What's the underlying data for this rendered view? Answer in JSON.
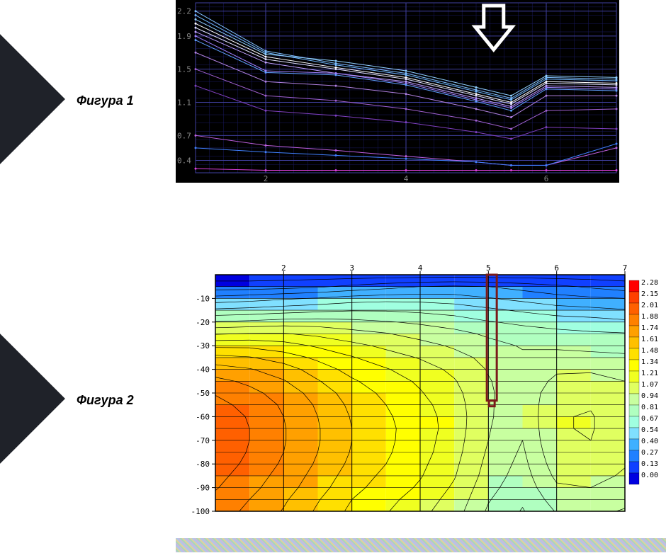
{
  "labels": {
    "fig1": "Фигура 1",
    "fig2": "Фигура 2"
  },
  "figure1": {
    "type": "line",
    "background_color": "#000000",
    "grid_color": "#1a1a60",
    "axis_color": "#4040a0",
    "text_color": "#888888",
    "xlim": [
      1,
      7
    ],
    "ylim": [
      0.25,
      2.3
    ],
    "y_ticks": [
      0.4,
      0.7,
      1.1,
      1.5,
      1.9,
      2.2
    ],
    "x_ticks": [
      2,
      4,
      6
    ],
    "grid_xstep": 0.2,
    "grid_ystep": 0.1,
    "arrow": {
      "x": 5.25,
      "color": "#ffffff",
      "stroke_width": 5
    },
    "series": [
      {
        "color": "#80c0ff",
        "y": [
          2.2,
          1.72,
          1.57,
          1.45,
          1.25,
          1.15,
          1.4,
          1.38
        ]
      },
      {
        "color": "#70b8ff",
        "y": [
          2.15,
          1.7,
          1.55,
          1.43,
          1.23,
          1.13,
          1.38,
          1.36
        ]
      },
      {
        "color": "#90d0ff",
        "y": [
          2.1,
          1.68,
          1.6,
          1.48,
          1.28,
          1.18,
          1.42,
          1.4
        ]
      },
      {
        "color": "#ffffff",
        "y": [
          2.05,
          1.65,
          1.52,
          1.4,
          1.2,
          1.1,
          1.35,
          1.33
        ]
      },
      {
        "color": "#e0e0ff",
        "y": [
          2.0,
          1.62,
          1.5,
          1.38,
          1.18,
          1.08,
          1.33,
          1.31
        ]
      },
      {
        "color": "#c0a0ff",
        "y": [
          1.95,
          1.58,
          1.45,
          1.35,
          1.15,
          1.05,
          1.3,
          1.28
        ]
      },
      {
        "color": "#a080ff",
        "y": [
          1.9,
          1.48,
          1.45,
          1.33,
          1.13,
          1.03,
          1.28,
          1.26
        ]
      },
      {
        "color": "#60a0ff",
        "y": [
          1.85,
          1.46,
          1.43,
          1.31,
          1.11,
          1.0,
          1.26,
          1.24
        ]
      },
      {
        "color": "#b080e0",
        "y": [
          1.7,
          1.35,
          1.3,
          1.2,
          1.02,
          0.92,
          1.18,
          1.18
        ]
      },
      {
        "color": "#a060d0",
        "y": [
          1.5,
          1.18,
          1.12,
          1.02,
          0.88,
          0.78,
          1.0,
          1.02
        ]
      },
      {
        "color": "#8040c0",
        "y": [
          1.3,
          1.0,
          0.94,
          0.86,
          0.74,
          0.66,
          0.8,
          0.78
        ]
      },
      {
        "color": "#c060e0",
        "y": [
          0.7,
          0.58,
          0.52,
          0.45,
          0.38,
          0.34,
          0.34,
          0.55
        ]
      },
      {
        "color": "#4080ff",
        "y": [
          0.55,
          0.5,
          0.46,
          0.42,
          0.38,
          0.34,
          0.34,
          0.6
        ]
      },
      {
        "color": "#e040e0",
        "y": [
          0.3,
          0.28,
          0.28,
          0.28,
          0.28,
          0.28,
          0.28,
          0.28
        ]
      }
    ]
  },
  "figure2": {
    "type": "heatmap-contour",
    "background_color": "#ffffff",
    "grid_color": "#000000",
    "xlim": [
      1,
      7
    ],
    "ylim": [
      -100,
      0
    ],
    "x_ticks": [
      2,
      3,
      4,
      5,
      6,
      7
    ],
    "y_ticks": [
      -10,
      -20,
      -30,
      -40,
      -50,
      -60,
      -70,
      -80,
      -90,
      -100
    ],
    "marker": {
      "x": 5.05,
      "y_top": 0,
      "y_bot": -55,
      "color": "#7a1a1a",
      "stroke_width": 3
    },
    "legend": [
      {
        "val": "2.28",
        "color": "#ff0000"
      },
      {
        "val": "2.15",
        "color": "#ff4000"
      },
      {
        "val": "2.01",
        "color": "#ff6000"
      },
      {
        "val": "1.88",
        "color": "#ff8000"
      },
      {
        "val": "1.74",
        "color": "#ffa000"
      },
      {
        "val": "1.61",
        "color": "#ffc000"
      },
      {
        "val": "1.48",
        "color": "#ffe000"
      },
      {
        "val": "1.34",
        "color": "#ffff00"
      },
      {
        "val": "1.21",
        "color": "#f0ff20"
      },
      {
        "val": "1.07",
        "color": "#e0ff60"
      },
      {
        "val": "0.94",
        "color": "#c8ffa0"
      },
      {
        "val": "0.81",
        "color": "#b0ffc0"
      },
      {
        "val": "0.67",
        "color": "#a0ffe0"
      },
      {
        "val": "0.54",
        "color": "#80e0ff"
      },
      {
        "val": "0.40",
        "color": "#40b0ff"
      },
      {
        "val": "0.27",
        "color": "#2080ff"
      },
      {
        "val": "0.13",
        "color": "#1040ff"
      },
      {
        "val": "0.00",
        "color": "#0000e0"
      }
    ],
    "grid": {
      "x": [
        1,
        1.5,
        2,
        2.5,
        3,
        3.5,
        4,
        4.5,
        5,
        5.5,
        6,
        6.5,
        7
      ],
      "y": [
        0,
        -5,
        -10,
        -15,
        -20,
        -25,
        -30,
        -35,
        -40,
        -45,
        -50,
        -55,
        -60,
        -65,
        -70,
        -75,
        -80,
        -85,
        -90,
        -95,
        -100
      ],
      "z": [
        [
          0.05,
          0.05,
          0.05,
          0.05,
          0.05,
          0.05,
          0.05,
          0.05,
          0.05,
          0.05,
          0.05,
          0.05,
          0.05
        ],
        [
          0.2,
          0.2,
          0.22,
          0.25,
          0.3,
          0.35,
          0.4,
          0.42,
          0.4,
          0.35,
          0.3,
          0.25,
          0.2
        ],
        [
          0.45,
          0.48,
          0.52,
          0.55,
          0.6,
          0.62,
          0.62,
          0.6,
          0.55,
          0.5,
          0.45,
          0.42,
          0.4
        ],
        [
          0.7,
          0.72,
          0.75,
          0.78,
          0.8,
          0.8,
          0.78,
          0.75,
          0.7,
          0.65,
          0.6,
          0.58,
          0.55
        ],
        [
          0.95,
          0.97,
          1.0,
          1.0,
          0.98,
          0.95,
          0.92,
          0.88,
          0.82,
          0.78,
          0.75,
          0.73,
          0.7
        ],
        [
          1.2,
          1.22,
          1.22,
          1.18,
          1.12,
          1.08,
          1.02,
          0.98,
          0.92,
          0.88,
          0.85,
          0.83,
          0.82
        ],
        [
          1.45,
          1.45,
          1.4,
          1.32,
          1.25,
          1.18,
          1.12,
          1.05,
          0.98,
          0.93,
          0.92,
          0.9,
          0.9
        ],
        [
          1.65,
          1.62,
          1.55,
          1.45,
          1.35,
          1.27,
          1.2,
          1.12,
          1.03,
          0.96,
          0.98,
          0.98,
          0.96
        ],
        [
          1.8,
          1.75,
          1.67,
          1.55,
          1.43,
          1.35,
          1.27,
          1.18,
          1.06,
          0.98,
          1.05,
          1.05,
          1.02
        ],
        [
          1.92,
          1.85,
          1.75,
          1.62,
          1.5,
          1.4,
          1.32,
          1.22,
          1.08,
          0.98,
          1.1,
          1.12,
          1.07
        ],
        [
          2.0,
          1.92,
          1.82,
          1.68,
          1.55,
          1.45,
          1.35,
          1.25,
          1.09,
          0.98,
          1.15,
          1.17,
          1.1
        ],
        [
          2.05,
          1.97,
          1.86,
          1.72,
          1.58,
          1.48,
          1.38,
          1.27,
          1.09,
          0.97,
          1.18,
          1.2,
          1.12
        ],
        [
          2.08,
          2.0,
          1.88,
          1.74,
          1.6,
          1.5,
          1.4,
          1.28,
          1.09,
          0.96,
          1.2,
          1.22,
          1.13
        ],
        [
          2.1,
          2.01,
          1.89,
          1.75,
          1.61,
          1.51,
          1.41,
          1.28,
          1.08,
          0.95,
          1.2,
          1.22,
          1.13
        ],
        [
          2.1,
          2.01,
          1.89,
          1.75,
          1.61,
          1.51,
          1.4,
          1.27,
          1.07,
          0.94,
          1.19,
          1.21,
          1.12
        ],
        [
          2.1,
          2.0,
          1.88,
          1.74,
          1.6,
          1.5,
          1.39,
          1.26,
          1.05,
          0.92,
          1.17,
          1.19,
          1.1
        ],
        [
          2.08,
          1.98,
          1.86,
          1.72,
          1.58,
          1.48,
          1.37,
          1.24,
          1.03,
          0.9,
          1.14,
          1.16,
          1.08
        ],
        [
          2.05,
          1.95,
          1.83,
          1.69,
          1.55,
          1.45,
          1.35,
          1.22,
          1.01,
          0.88,
          1.1,
          1.12,
          1.05
        ],
        [
          2.02,
          1.92,
          1.8,
          1.66,
          1.52,
          1.42,
          1.32,
          1.19,
          0.98,
          0.86,
          1.05,
          1.07,
          1.01
        ],
        [
          1.98,
          1.88,
          1.76,
          1.62,
          1.48,
          1.38,
          1.28,
          1.16,
          0.95,
          0.83,
          1.0,
          1.02,
          0.97
        ],
        [
          1.95,
          1.85,
          1.73,
          1.59,
          1.45,
          1.35,
          1.25,
          1.13,
          0.92,
          0.8,
          0.95,
          0.97,
          0.93
        ]
      ]
    }
  }
}
